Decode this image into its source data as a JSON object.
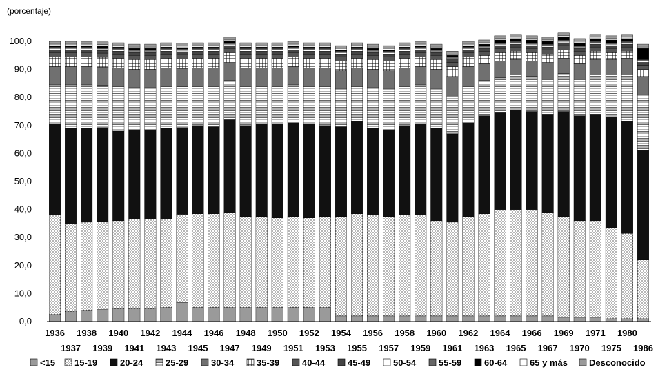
{
  "chart_data": {
    "type": "bar",
    "stacked": true,
    "ylabel": "(porcentaje)",
    "ylim": [
      0,
      100
    ],
    "yticks": [
      "0,0",
      "10,0",
      "20,0",
      "30,0",
      "40,0",
      "50,0",
      "60,0",
      "70,0",
      "80,0",
      "90,0",
      "100,0"
    ],
    "categories": [
      "1936",
      "1937",
      "1938",
      "1939",
      "1940",
      "1941",
      "1942",
      "1943",
      "1944",
      "1945",
      "1946",
      "1947",
      "1948",
      "1949",
      "1950",
      "1951",
      "1952",
      "1953",
      "1954",
      "1955",
      "1956",
      "1957",
      "1958",
      "1959",
      "1960",
      "1961",
      "1962",
      "1963",
      "1964",
      "1965",
      "1966",
      "1967",
      "1969",
      "1970",
      "1971",
      "1975",
      "1980",
      "1986"
    ],
    "legend_position": "bottom",
    "series": [
      {
        "name": "<15",
        "color": "#9a9a9a",
        "pattern": "solid",
        "values": [
          2.5,
          3.5,
          4,
          4.3,
          4.5,
          4.5,
          4.5,
          5,
          6.8,
          5,
          5,
          5,
          5,
          5,
          5,
          5,
          5,
          5,
          2,
          2,
          2,
          2,
          2,
          2,
          2,
          2,
          2,
          2,
          2,
          2,
          2,
          2,
          1.5,
          1.5,
          1.5,
          1,
          1,
          1
        ]
      },
      {
        "name": "15-19",
        "color": "#ffffff",
        "pattern": "dots",
        "values": [
          35.5,
          31.5,
          31.5,
          31.5,
          31.5,
          32,
          32,
          31.5,
          31.5,
          33.5,
          33.5,
          34,
          32.5,
          32.5,
          32,
          32.5,
          32,
          32.5,
          35.5,
          36.5,
          36,
          35.5,
          36,
          36,
          34,
          33.5,
          35.5,
          36.5,
          38,
          38,
          38,
          37,
          36,
          34.5,
          34.5,
          32.5,
          30.5,
          21
        ]
      },
      {
        "name": "20-24",
        "color": "#111111",
        "pattern": "solid",
        "values": [
          32.5,
          34,
          33.5,
          33.5,
          32,
          32,
          32,
          32.5,
          31,
          31.5,
          31,
          33,
          32.5,
          33,
          33.5,
          33.5,
          33.5,
          32.5,
          32,
          33,
          31,
          31,
          32,
          32.5,
          33,
          31.5,
          33.5,
          35,
          34.5,
          35.5,
          35,
          35,
          37.5,
          37.5,
          38,
          39.5,
          40,
          39
        ]
      },
      {
        "name": "25-29",
        "color": "#ffffff",
        "pattern": "hlines",
        "values": [
          14,
          15.5,
          15.5,
          15,
          16,
          15,
          15,
          15,
          14.5,
          14,
          14.5,
          14,
          14,
          13.5,
          13.5,
          13.5,
          13.5,
          14,
          13.5,
          12.5,
          14.5,
          14.5,
          14,
          14,
          14,
          13.5,
          13,
          12.5,
          12.5,
          12.5,
          12.5,
          12.5,
          13.5,
          13,
          14,
          15,
          16.5,
          20
        ]
      },
      {
        "name": "30-34",
        "color": "#707070",
        "pattern": "solid",
        "values": [
          6.5,
          6.5,
          6.5,
          6.5,
          6.5,
          6.5,
          6.5,
          6.5,
          6.5,
          6.5,
          6.5,
          6.5,
          6.5,
          6.5,
          6.5,
          6.5,
          6.5,
          6.5,
          6.5,
          6.5,
          6.5,
          6.5,
          6.5,
          6.5,
          7,
          7,
          7,
          6,
          6,
          5.5,
          5.5,
          6,
          5.5,
          5.5,
          5.5,
          5.5,
          6,
          6.5
        ]
      },
      {
        "name": "35-39",
        "color": "#ffffff",
        "pattern": "grid",
        "values": [
          3.5,
          3.5,
          3.5,
          3.5,
          3.5,
          3.5,
          3.5,
          3.5,
          3.5,
          3.5,
          3.5,
          3.5,
          3.5,
          3.5,
          3.5,
          3.5,
          3.5,
          3.5,
          3.5,
          3.5,
          3.5,
          3.5,
          3.5,
          3.5,
          3.5,
          3.5,
          3.5,
          3,
          3,
          3,
          3,
          3,
          3,
          3,
          3,
          2.5,
          2.5,
          2.5
        ]
      },
      {
        "name": "40-44",
        "color": "#555555",
        "pattern": "solid",
        "values": [
          1.5,
          1.5,
          1.5,
          1.5,
          1.5,
          1.5,
          1.5,
          1.5,
          1.5,
          1.5,
          1.5,
          1.5,
          1.5,
          1.5,
          1.5,
          1.5,
          1.5,
          1.5,
          1.5,
          1.5,
          1.5,
          1.5,
          1.5,
          1.5,
          1.5,
          1.5,
          1.5,
          1.5,
          1.5,
          1.5,
          1.5,
          1.5,
          1.5,
          1.5,
          1.5,
          1.5,
          1.5,
          1.5
        ]
      },
      {
        "name": "45-49",
        "color": "#444444",
        "pattern": "solid",
        "values": [
          1,
          1,
          1,
          1,
          1,
          1,
          1,
          1,
          1,
          1,
          1,
          1,
          1,
          1,
          1,
          1,
          1,
          1,
          1,
          1,
          1,
          1,
          1,
          1,
          1,
          1,
          1,
          1,
          1,
          1,
          1,
          1,
          1,
          1,
          1,
          1,
          1,
          1
        ]
      },
      {
        "name": "50-54",
        "color": "#ffffff",
        "pattern": "solid",
        "values": [
          0.5,
          0.5,
          0.5,
          0.5,
          0.5,
          0.5,
          0.5,
          0.5,
          0.5,
          0.5,
          0.5,
          0.5,
          0.5,
          0.5,
          0.5,
          0.5,
          0.5,
          0.5,
          0.5,
          0.5,
          0.5,
          0.5,
          0.5,
          0.5,
          0.5,
          0.5,
          0.5,
          0.5,
          0.5,
          0.5,
          0.5,
          0.5,
          0.5,
          0.5,
          0.5,
          0.5,
          0.5,
          0.5
        ]
      },
      {
        "name": "55-59",
        "color": "#666666",
        "pattern": "solid",
        "values": [
          0.5,
          0.5,
          0.5,
          0.5,
          0.5,
          0.5,
          0.5,
          0.5,
          0.5,
          0.5,
          0.5,
          0.5,
          0.5,
          0.5,
          0.5,
          0.5,
          0.5,
          0.5,
          0.5,
          0.5,
          0.5,
          0.5,
          0.5,
          0.5,
          0.5,
          0.5,
          0.5,
          0.5,
          0.5,
          0.5,
          0.5,
          0.5,
          0.5,
          0.5,
          0.5,
          0.5,
          0.5,
          0.5
        ]
      },
      {
        "name": "60-64",
        "color": "#000000",
        "pattern": "solid",
        "values": [
          0.5,
          0.5,
          0.5,
          0.5,
          0.5,
          0.5,
          0.5,
          0.5,
          0.5,
          0.5,
          0.5,
          0.5,
          0.5,
          0.5,
          0.5,
          0.5,
          0.5,
          0.5,
          0.5,
          0.5,
          0.5,
          0.5,
          0.5,
          0.5,
          0.5,
          0.5,
          0.5,
          0.5,
          1,
          1,
          1,
          1,
          1,
          1,
          1,
          1,
          1,
          4
        ]
      },
      {
        "name": "65 y más",
        "color": "#ffffff",
        "pattern": "solid",
        "values": [
          0.5,
          0.5,
          0.5,
          0.5,
          0.5,
          0.5,
          0.5,
          0.5,
          0.5,
          0.5,
          0.5,
          0.5,
          0.5,
          0.5,
          0.5,
          0.5,
          0.5,
          0.5,
          0.5,
          0.5,
          0.5,
          0.5,
          0.5,
          0.5,
          0.5,
          0.5,
          0.5,
          0.5,
          0.5,
          0.5,
          0.5,
          0.5,
          0.5,
          0.5,
          0.5,
          0.5,
          0.5,
          0.5
        ]
      },
      {
        "name": "Desconocido",
        "color": "#9a9a9a",
        "pattern": "solid",
        "values": [
          1,
          1,
          1,
          1,
          1,
          1,
          1,
          1,
          1,
          1,
          1,
          1,
          1,
          1,
          1,
          1,
          1,
          1,
          1,
          1,
          1,
          1,
          1,
          1,
          1,
          1,
          1,
          1,
          1,
          1,
          1,
          1,
          1,
          1,
          1,
          1,
          1,
          1
        ]
      }
    ]
  }
}
